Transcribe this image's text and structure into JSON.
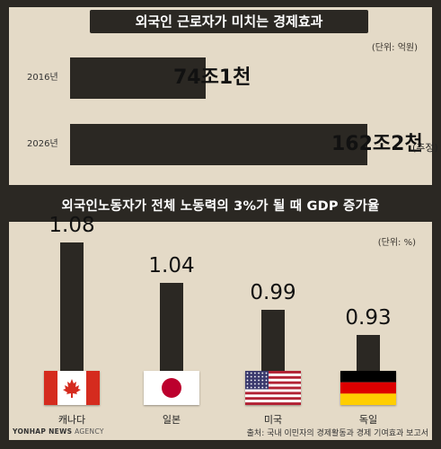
{
  "chart_data": [
    {
      "type": "bar",
      "orientation": "horizontal",
      "title": "외국인 근로자가 미치는 경제효과",
      "unit": "(단위: 억원)",
      "categories": [
        "2016년",
        "2026년"
      ],
      "values": [
        741000,
        1622000
      ],
      "value_labels": [
        "74조1천",
        "162조2천"
      ],
      "notes": [
        "",
        "(추정)"
      ]
    },
    {
      "type": "bar",
      "orientation": "vertical",
      "title": "외국인노동자가 전체 노동력의 3%가 될 때 GDP 증가율",
      "unit": "(단위: %)",
      "categories": [
        "캐나다",
        "일본",
        "미국",
        "독일"
      ],
      "values": [
        1.08,
        1.04,
        0.99,
        0.93
      ],
      "value_labels": [
        "1.08",
        "1.04",
        "0.99",
        "0.93"
      ],
      "flag_icons": [
        "canada-flag-icon",
        "japan-flag-icon",
        "usa-flag-icon",
        "germany-flag-icon"
      ]
    }
  ],
  "footer": {
    "logo_prefix": "YONHAP NEWS",
    "logo_suffix": "AGENCY",
    "source": "출처: 국내 이민자의 경제활동과 경제 기여효과 보고서"
  },
  "colors": {
    "background": "#2b2823",
    "panel": "#e4dac7",
    "bar": "#2b2823"
  }
}
